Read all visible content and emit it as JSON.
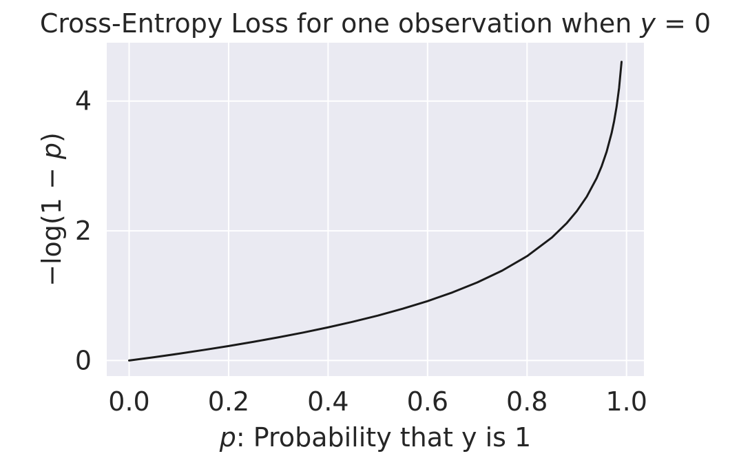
{
  "chart_data": {
    "type": "line",
    "title": {
      "prefix": "Cross-Entropy Loss for one observation when ",
      "var": "y",
      "suffix": " = 0"
    },
    "xlabel": {
      "var": "p",
      "text": ": Probability that y is 1"
    },
    "ylabel": {
      "prefix": "−log(1 − ",
      "var": "p",
      "suffix": ")"
    },
    "xlim": [
      -0.045,
      1.035
    ],
    "ylim": [
      -0.24,
      4.9
    ],
    "x_ticks": [
      0.0,
      0.2,
      0.4,
      0.6,
      0.8,
      1.0
    ],
    "x_tick_labels": [
      "0.0",
      "0.2",
      "0.4",
      "0.6",
      "0.8",
      "1.0"
    ],
    "y_ticks": [
      0,
      2,
      4
    ],
    "y_tick_labels": [
      "0",
      "2",
      "4"
    ],
    "grid": true,
    "series": [
      {
        "x": [
          0.0,
          0.05,
          0.1,
          0.15,
          0.2,
          0.25,
          0.3,
          0.35,
          0.4,
          0.45,
          0.5,
          0.55,
          0.6,
          0.65,
          0.7,
          0.75,
          0.8,
          0.85,
          0.88,
          0.9,
          0.92,
          0.94,
          0.95,
          0.96,
          0.97,
          0.975,
          0.98,
          0.985,
          0.99
        ],
        "y": [
          0.0,
          0.051,
          0.105,
          0.163,
          0.223,
          0.288,
          0.357,
          0.431,
          0.511,
          0.598,
          0.693,
          0.799,
          0.916,
          1.05,
          1.204,
          1.386,
          1.609,
          1.897,
          2.12,
          2.303,
          2.526,
          2.813,
          2.996,
          3.219,
          3.507,
          3.689,
          3.912,
          4.2,
          4.605
        ],
        "color": "#1a1a1a"
      }
    ],
    "colors": {
      "plot_background": "#eaeaf2",
      "grid": "#ffffff",
      "text": "#262626",
      "line": "#1a1a1a"
    }
  }
}
